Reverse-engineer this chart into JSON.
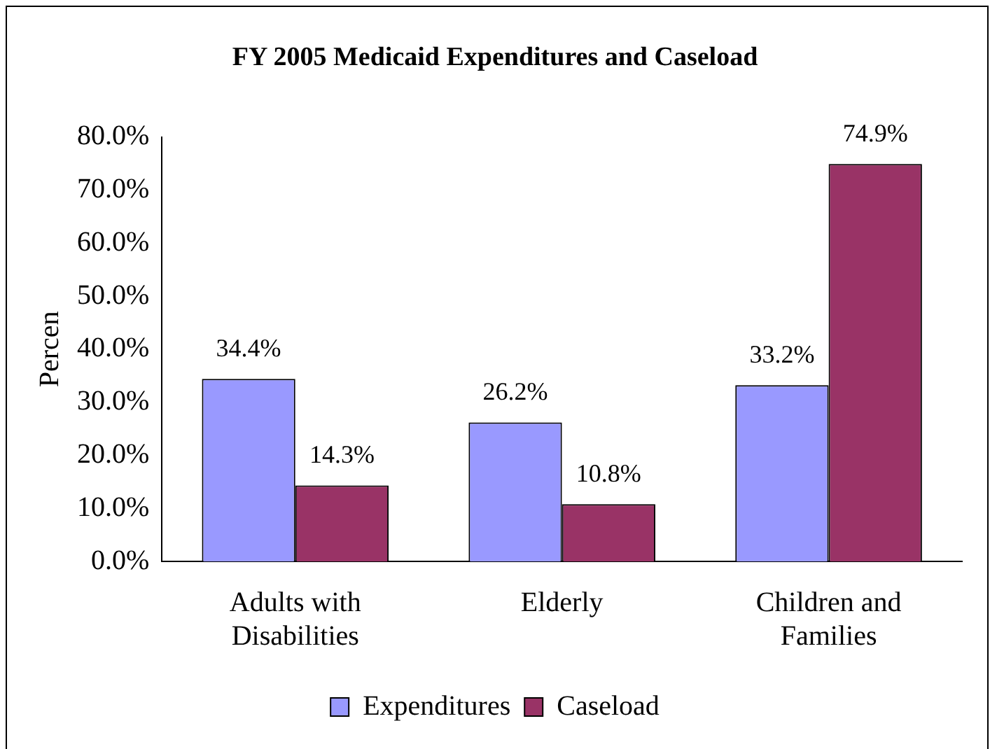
{
  "chart_data": {
    "type": "bar",
    "title": "FY 2005 Medicaid Expenditures and Caseload",
    "ylabel": "Percen",
    "categories": [
      "Adults with\nDisabilities",
      "Elderly",
      "Children and\nFamilies"
    ],
    "series": [
      {
        "name": "Expenditures",
        "color": "#9999ff",
        "values": [
          34.4,
          26.2,
          33.2
        ],
        "value_labels": [
          "34.4%",
          "26.2%",
          "33.2%"
        ]
      },
      {
        "name": "Caseload",
        "color": "#993366",
        "values": [
          14.3,
          10.8,
          74.9
        ],
        "value_labels": [
          "14.3%",
          "10.8%",
          "74.9%"
        ]
      }
    ],
    "ylim": [
      0,
      80
    ],
    "yticks": [
      {
        "value": 0,
        "label": "0.0%"
      },
      {
        "value": 10,
        "label": "10.0%"
      },
      {
        "value": 20,
        "label": "20.0%"
      },
      {
        "value": 30,
        "label": "30.0%"
      },
      {
        "value": 40,
        "label": "40.0%"
      },
      {
        "value": 50,
        "label": "50.0%"
      },
      {
        "value": 60,
        "label": "60.0%"
      },
      {
        "value": 70,
        "label": "70.0%"
      },
      {
        "value": 80,
        "label": "80.0%"
      }
    ],
    "grid": false,
    "legend": "bottom"
  }
}
